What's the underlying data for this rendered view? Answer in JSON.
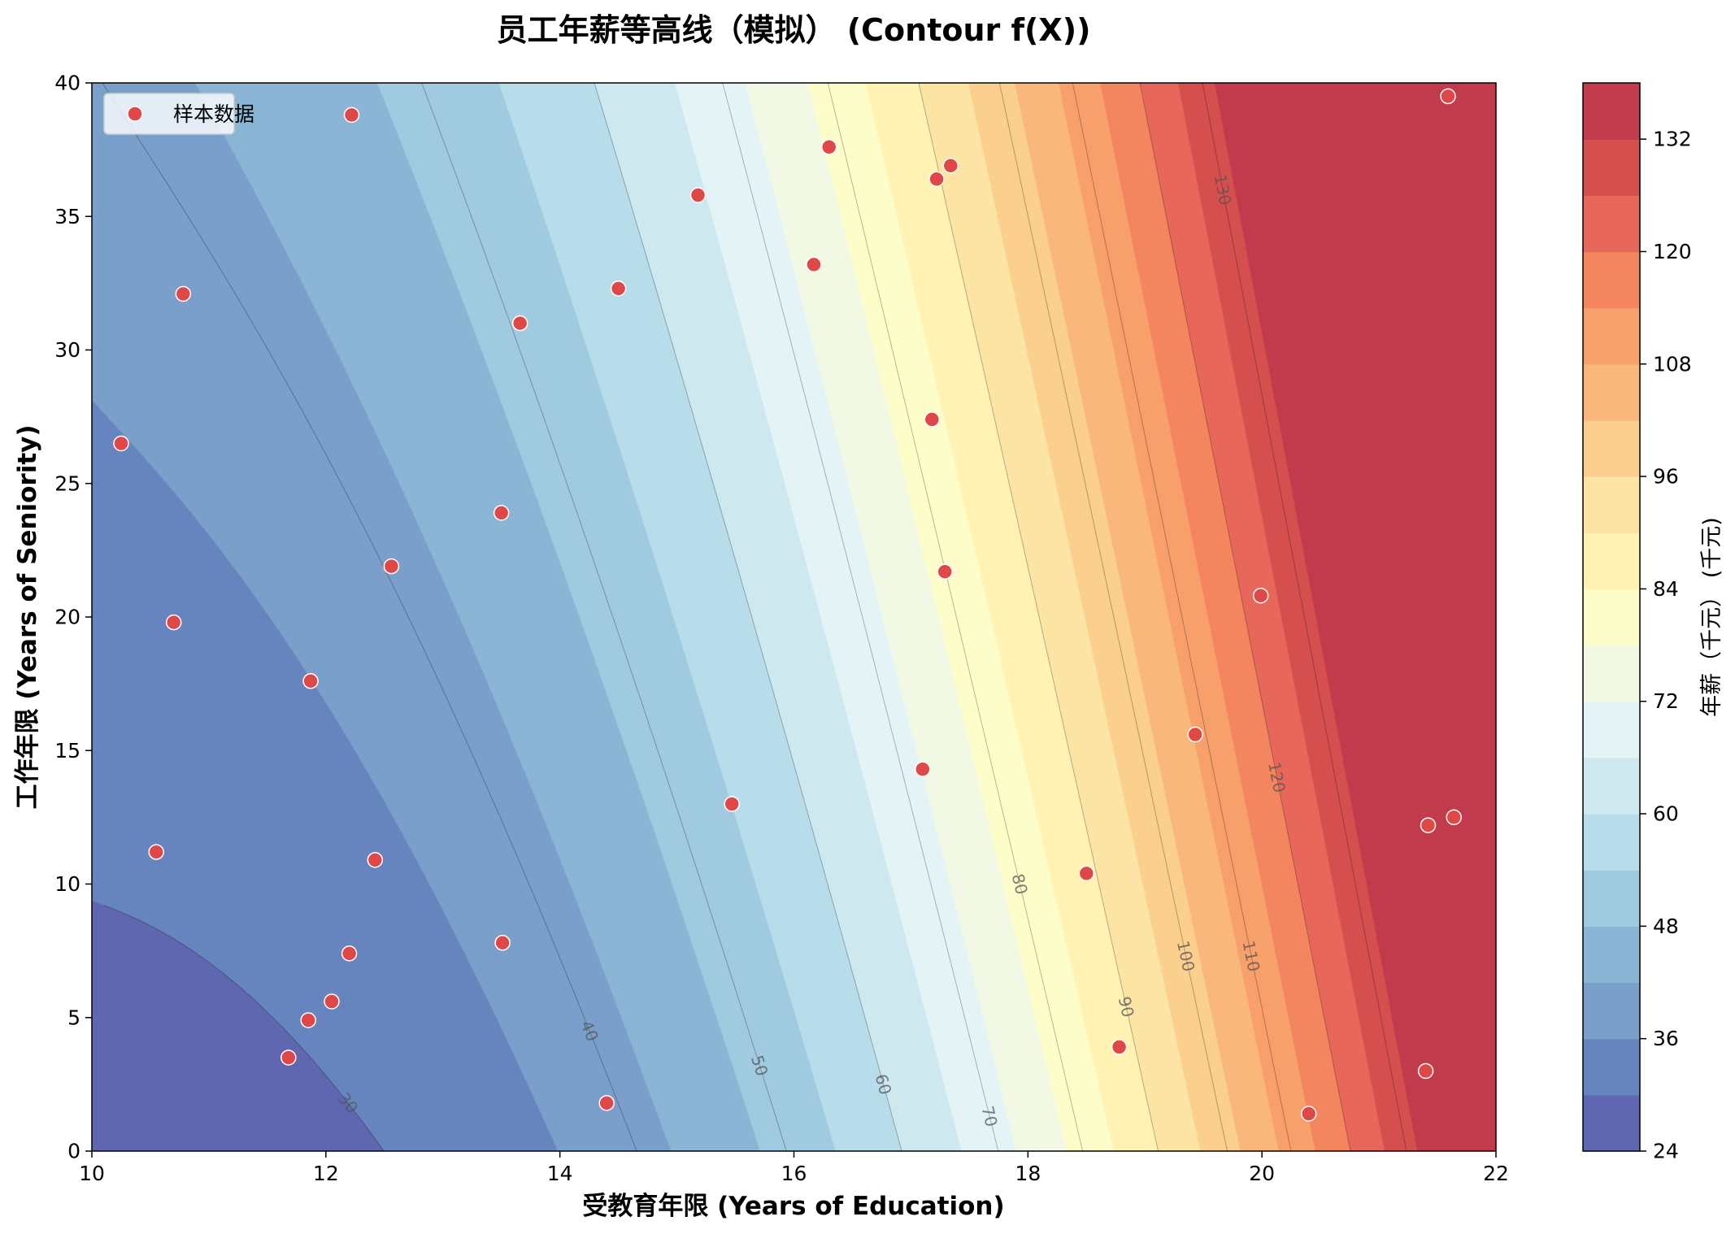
{
  "chart_data": {
    "type": "contour",
    "title": "员工年薪等高线（模拟） (Contour f(X))",
    "xlabel": "受教育年限 (Years of Education)",
    "ylabel": "工作年限 (Years of Seniority)",
    "colorbar_label": "年薪（千元） (千元)",
    "xlim": [
      10,
      22
    ],
    "ylim": [
      0,
      40
    ],
    "x_ticks": [
      "10",
      "12",
      "14",
      "16",
      "18",
      "20",
      "22"
    ],
    "y_ticks": [
      "0",
      "5",
      "10",
      "15",
      "20",
      "25",
      "30",
      "35",
      "40"
    ],
    "colorbar_ticks": [
      "24",
      "36",
      "48",
      "60",
      "72",
      "84",
      "96",
      "108",
      "120",
      "132"
    ],
    "colorbar_range": [
      24,
      138
    ],
    "fill_levels": [
      24,
      30,
      36,
      42,
      48,
      54,
      60,
      66,
      72,
      78,
      84,
      90,
      96,
      102,
      108,
      114,
      120,
      126,
      132,
      138
    ],
    "fill_colors": [
      "#5e67b0",
      "#6684bd",
      "#7a9fca",
      "#8bb5d5",
      "#a0cae0",
      "#b7dcea",
      "#cee8f0",
      "#e3f3f6",
      "#f1f9e4",
      "#fdfdc9",
      "#fff2b2",
      "#fce4a4",
      "#fbcf8e",
      "#f9b77b",
      "#f8a06c",
      "#f3855f",
      "#e8675b",
      "#d64f4f",
      "#c13b4c"
    ],
    "contour_lines": [
      30,
      40,
      50,
      60,
      70,
      80,
      90,
      100,
      110,
      120,
      130
    ],
    "contour_label_text": [
      "30",
      "40",
      "50",
      "60",
      "70",
      "80",
      "90",
      "100",
      "110",
      "120",
      "130"
    ],
    "legend": {
      "label": "样本数据",
      "position": "upper left"
    },
    "marker_color": "#e04848",
    "points": [
      {
        "x": 10.25,
        "y": 26.5
      },
      {
        "x": 10.55,
        "y": 11.2
      },
      {
        "x": 10.7,
        "y": 19.8
      },
      {
        "x": 10.78,
        "y": 32.1
      },
      {
        "x": 11.68,
        "y": 3.5
      },
      {
        "x": 11.85,
        "y": 4.9
      },
      {
        "x": 11.87,
        "y": 17.6
      },
      {
        "x": 12.05,
        "y": 5.6
      },
      {
        "x": 12.2,
        "y": 7.4
      },
      {
        "x": 12.22,
        "y": 38.8
      },
      {
        "x": 12.42,
        "y": 10.9
      },
      {
        "x": 12.56,
        "y": 21.9
      },
      {
        "x": 13.5,
        "y": 23.9
      },
      {
        "x": 13.51,
        "y": 7.8
      },
      {
        "x": 13.66,
        "y": 31.0
      },
      {
        "x": 14.4,
        "y": 1.8
      },
      {
        "x": 14.5,
        "y": 32.3
      },
      {
        "x": 15.18,
        "y": 35.8
      },
      {
        "x": 15.47,
        "y": 13.0
      },
      {
        "x": 16.17,
        "y": 33.2
      },
      {
        "x": 16.3,
        "y": 37.6
      },
      {
        "x": 17.1,
        "y": 14.3
      },
      {
        "x": 17.18,
        "y": 27.4
      },
      {
        "x": 17.22,
        "y": 36.4
      },
      {
        "x": 17.29,
        "y": 21.7
      },
      {
        "x": 17.34,
        "y": 36.9
      },
      {
        "x": 18.5,
        "y": 10.4
      },
      {
        "x": 18.78,
        "y": 3.9
      },
      {
        "x": 19.43,
        "y": 15.6
      },
      {
        "x": 19.99,
        "y": 20.8
      },
      {
        "x": 20.4,
        "y": 1.4
      },
      {
        "x": 21.4,
        "y": 3.0
      },
      {
        "x": 21.42,
        "y": 12.2
      },
      {
        "x": 21.59,
        "y": 39.5
      },
      {
        "x": 21.64,
        "y": 12.5
      }
    ]
  }
}
